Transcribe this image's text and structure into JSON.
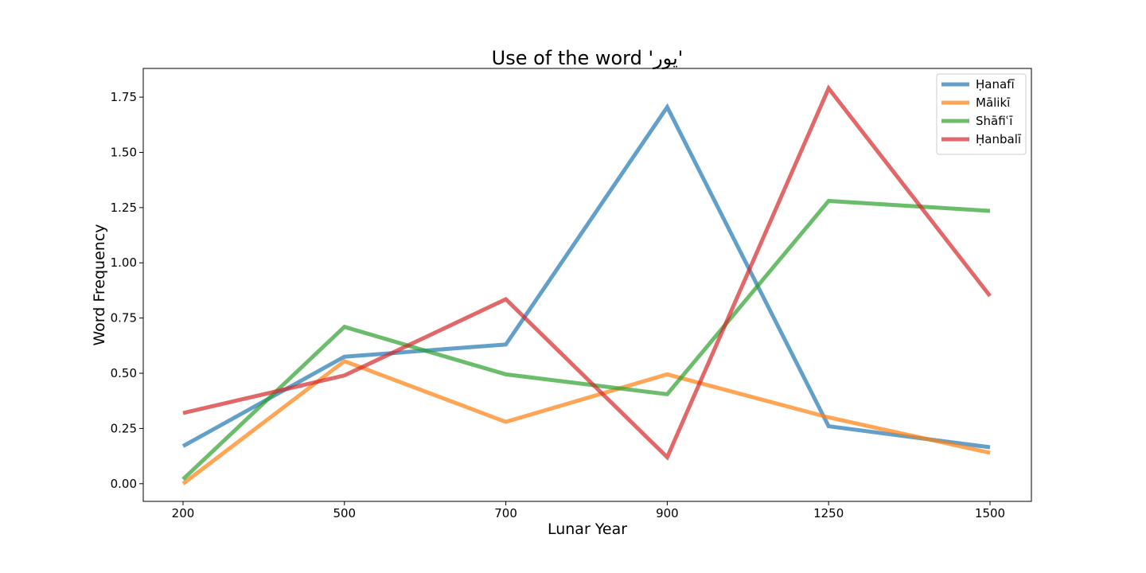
{
  "chart_data": {
    "type": "line",
    "title": "Use of the word 'يور'",
    "xlabel": "Lunar Year",
    "ylabel": "Word Frequency",
    "categories": [
      "200",
      "500",
      "700",
      "900",
      "1250",
      "1500"
    ],
    "ylim": [
      -0.08,
      1.88
    ],
    "yticks": [
      "0.00",
      "0.25",
      "0.50",
      "0.75",
      "1.00",
      "1.25",
      "1.50",
      "1.75"
    ],
    "grid": false,
    "legend_position": "top-right",
    "series": [
      {
        "name": "Ḥanafī",
        "color": "#1f77b4",
        "values": [
          0.17,
          0.575,
          0.63,
          1.705,
          0.26,
          0.165
        ]
      },
      {
        "name": "Mālikī",
        "color": "#ff7f0e",
        "values": [
          0.0,
          0.555,
          0.28,
          0.495,
          0.3,
          0.14
        ]
      },
      {
        "name": "Shāfiʿī",
        "color": "#2ca02c",
        "values": [
          0.02,
          0.71,
          0.495,
          0.405,
          1.28,
          1.235
        ]
      },
      {
        "name": "Ḥanbalī",
        "color": "#d62728",
        "values": [
          0.32,
          0.49,
          0.835,
          0.12,
          1.79,
          0.85
        ]
      }
    ]
  }
}
